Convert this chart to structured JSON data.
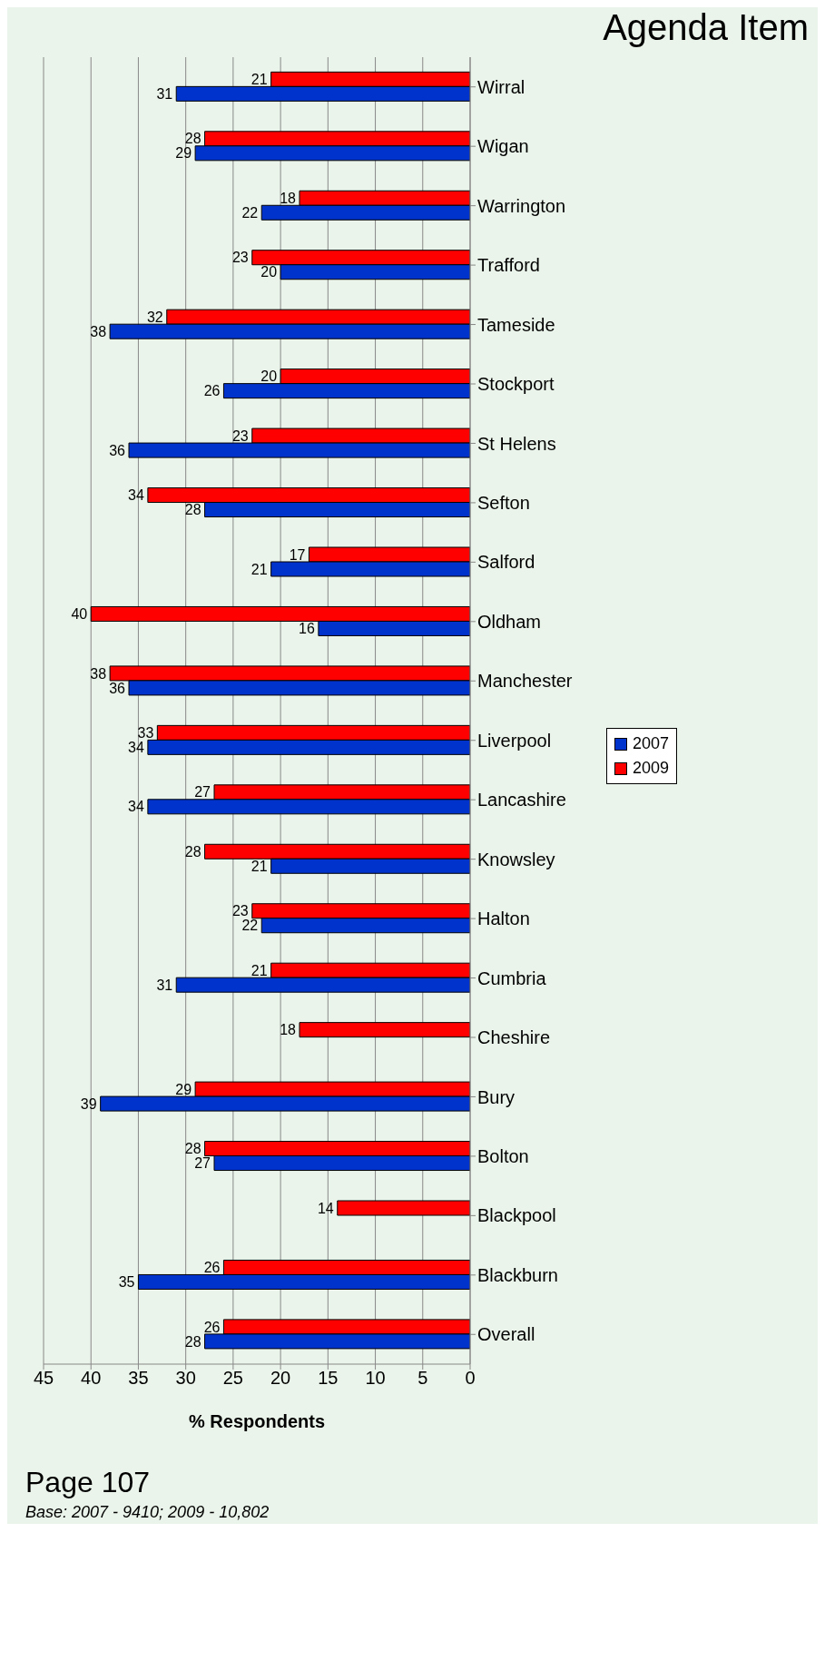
{
  "chart_data": {
    "type": "bar",
    "orientation": "horizontal",
    "xlabel": "% Respondents",
    "categories": [
      "Wirral",
      "Wigan",
      "Warrington",
      "Trafford",
      "Tameside",
      "Stockport",
      "St Helens",
      "Sefton",
      "Salford",
      "Oldham",
      "Manchester",
      "Liverpool",
      "Lancashire",
      "Knowsley",
      "Halton",
      "Cumbria",
      "Cheshire",
      "Bury",
      "Bolton",
      "Blackpool",
      "Blackburn",
      "Overall"
    ],
    "series": [
      {
        "name": "2007",
        "color": "#0033cc",
        "values": [
          31,
          29,
          22,
          20,
          38,
          26,
          36,
          28,
          21,
          16,
          36,
          34,
          34,
          21,
          22,
          31,
          null,
          39,
          27,
          null,
          35,
          28
        ]
      },
      {
        "name": "2009",
        "color": "#ff0000",
        "values": [
          21,
          28,
          18,
          23,
          32,
          20,
          23,
          34,
          17,
          40,
          38,
          33,
          27,
          28,
          23,
          21,
          18,
          29,
          28,
          14,
          26,
          26
        ]
      }
    ],
    "xlim": [
      45,
      0
    ],
    "xticks": [
      45,
      40,
      35,
      30,
      25,
      20,
      15,
      10,
      5,
      0
    ],
    "grid": "x",
    "legend": "right",
    "data_labels": true,
    "annotations": [
      "Agenda Item",
      "Page 107",
      "Base: 2007 - 9410; 2009 - 10,802"
    ]
  }
}
